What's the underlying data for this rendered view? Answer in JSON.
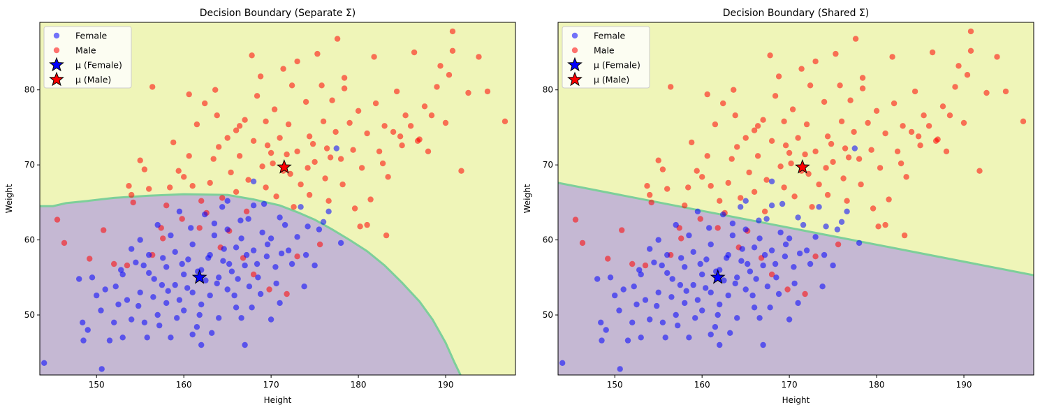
{
  "chart_data": [
    {
      "type": "scatter",
      "title": "Decision Boundary (Separate Σ)",
      "xlabel": "Height",
      "ylabel": "Weight",
      "xlim": [
        143.5,
        198
      ],
      "ylim": [
        42,
        89
      ],
      "xticks": [
        150,
        160,
        170,
        180,
        190
      ],
      "yticks": [
        50,
        60,
        70,
        80
      ],
      "grid": false,
      "legend_position": "top-left",
      "legend": [
        "Female",
        "Male",
        "μ (Female)",
        "μ (Male)"
      ],
      "regions": {
        "female_color": "#c5b8d3",
        "male_color": "#eff5b8",
        "boundary_color": "#7dcf9a",
        "boundary": [
          [
            143.5,
            64.5
          ],
          [
            145,
            64.5
          ],
          [
            146.5,
            64.9
          ],
          [
            149,
            65.2
          ],
          [
            152,
            65.6
          ],
          [
            156,
            65.9
          ],
          [
            160,
            66.1
          ],
          [
            165,
            66.0
          ],
          [
            168,
            65.4
          ],
          [
            171,
            64.6
          ],
          [
            173,
            63.7
          ],
          [
            175,
            62.7
          ],
          [
            177,
            61.4
          ],
          [
            179,
            60.0
          ],
          [
            181,
            58.5
          ],
          [
            183,
            56.6
          ],
          [
            185,
            54.3
          ],
          [
            187,
            51.8
          ],
          [
            188.5,
            49.4
          ],
          [
            190,
            46.3
          ],
          [
            191,
            43.7
          ],
          [
            191.7,
            42
          ]
        ],
        "boundary_kind": "curve"
      },
      "series": [
        {
          "name": "Female",
          "color": "#0000ff",
          "opacity": 0.55
        },
        {
          "name": "Male",
          "color": "#ff0000",
          "opacity": 0.55
        }
      ],
      "means": [
        {
          "name": "μ (Female)",
          "x": 161.8,
          "y": 55.0,
          "color": "#0000ff"
        },
        {
          "name": "μ (Male)",
          "x": 171.5,
          "y": 69.7,
          "color": "#ff0000"
        }
      ]
    },
    {
      "type": "scatter",
      "title": "Decision Boundary (Shared Σ)",
      "xlabel": "Height",
      "ylabel": "Weight",
      "xlim": [
        143.5,
        198
      ],
      "ylim": [
        42,
        89
      ],
      "xticks": [
        150,
        160,
        170,
        180,
        190
      ],
      "yticks": [
        50,
        60,
        70,
        80
      ],
      "grid": false,
      "legend_position": "top-left",
      "legend": [
        "Female",
        "Male",
        "μ (Female)",
        "μ (Male)"
      ],
      "regions": {
        "female_color": "#c5b8d3",
        "male_color": "#eff5b8",
        "boundary_color": "#7dcf9a",
        "boundary": [
          [
            143.5,
            67.6
          ],
          [
            198,
            55.3
          ]
        ],
        "boundary_kind": "line"
      },
      "series": [
        {
          "name": "Female",
          "color": "#0000ff",
          "opacity": 0.55
        },
        {
          "name": "Male",
          "color": "#ff0000",
          "opacity": 0.55
        }
      ],
      "means": [
        {
          "name": "μ (Female)",
          "x": 161.8,
          "y": 55.0,
          "color": "#0000ff"
        },
        {
          "name": "μ (Male)",
          "x": 171.5,
          "y": 69.7,
          "color": "#ff0000"
        }
      ]
    }
  ],
  "points": {
    "female": [
      [
        144,
        43.6
      ],
      [
        150.6,
        42.8
      ],
      [
        148,
        54.8
      ],
      [
        148.5,
        46.6
      ],
      [
        149,
        48
      ],
      [
        149.5,
        55
      ],
      [
        150.5,
        50.6
      ],
      [
        151,
        53.4
      ],
      [
        151.5,
        46.6
      ],
      [
        152,
        49
      ],
      [
        152.5,
        51.4
      ],
      [
        153,
        47
      ],
      [
        153.5,
        52
      ],
      [
        154,
        49.4
      ],
      [
        154.5,
        57
      ],
      [
        155,
        53
      ],
      [
        155.5,
        49
      ],
      [
        156,
        55.6
      ],
      [
        156.5,
        52.4
      ],
      [
        157,
        50
      ],
      [
        157.5,
        54
      ],
      [
        158,
        56.4
      ],
      [
        158,
        51.6
      ],
      [
        158.5,
        47
      ],
      [
        159,
        54
      ],
      [
        159,
        58.4
      ],
      [
        159.5,
        52
      ],
      [
        160,
        55.4
      ],
      [
        160,
        50.6
      ],
      [
        160.5,
        57.4
      ],
      [
        161,
        53
      ],
      [
        161,
        59.4
      ],
      [
        161.5,
        48.4
      ],
      [
        162,
        56
      ],
      [
        162,
        51.4
      ],
      [
        162.5,
        54.6
      ],
      [
        163,
        58
      ],
      [
        163,
        52.6
      ],
      [
        163.5,
        60.6
      ],
      [
        164,
        55
      ],
      [
        164,
        49.6
      ],
      [
        164.5,
        57.2
      ],
      [
        165,
        53.4
      ],
      [
        165,
        61.4
      ],
      [
        165.5,
        55.8
      ],
      [
        166,
        59
      ],
      [
        166,
        51
      ],
      [
        166.5,
        62.6
      ],
      [
        167,
        56.6
      ],
      [
        167.5,
        53.8
      ],
      [
        168,
        58.6
      ],
      [
        168,
        64.6
      ],
      [
        168.5,
        55
      ],
      [
        169,
        61
      ],
      [
        169.5,
        57.8
      ],
      [
        170,
        60.2
      ],
      [
        170.5,
        56.4
      ],
      [
        171,
        63
      ],
      [
        172,
        58.6
      ],
      [
        173,
        60.4
      ],
      [
        174,
        58
      ],
      [
        175,
        56.6
      ],
      [
        175.5,
        61.4
      ],
      [
        178,
        59.6
      ],
      [
        177.5,
        72.2
      ],
      [
        171,
        51.6
      ],
      [
        167,
        46
      ],
      [
        162,
        46
      ],
      [
        173.8,
        53.8
      ],
      [
        155,
        60
      ],
      [
        157,
        62
      ],
      [
        159.5,
        63.8
      ],
      [
        165,
        65.2
      ],
      [
        168,
        67.8
      ],
      [
        152.8,
        56
      ],
      [
        154,
        58.8
      ],
      [
        156,
        58
      ],
      [
        161,
        47.4
      ],
      [
        158.5,
        60.6
      ],
      [
        163.5,
        62.2
      ],
      [
        166.6,
        60.2
      ],
      [
        170.6,
        54.2
      ],
      [
        172.4,
        56.8
      ],
      [
        174.2,
        61.8
      ],
      [
        176.6,
        63.8
      ],
      [
        170,
        49.4
      ],
      [
        148.4,
        49
      ],
      [
        150,
        52.6
      ],
      [
        153,
        55.4
      ],
      [
        155.4,
        56.6
      ],
      [
        157.6,
        57.6
      ],
      [
        159.8,
        56.8
      ],
      [
        161.6,
        55.8
      ],
      [
        163.8,
        54.2
      ],
      [
        165.8,
        52.6
      ],
      [
        167.8,
        51
      ],
      [
        160.4,
        53.6
      ],
      [
        162.8,
        57.6
      ],
      [
        164.6,
        58.8
      ],
      [
        166.2,
        54.8
      ],
      [
        168.4,
        56.8
      ],
      [
        169.6,
        59.4
      ],
      [
        158.2,
        53.2
      ],
      [
        156.6,
        54.8
      ],
      [
        154.8,
        51.2
      ],
      [
        152.2,
        53.8
      ],
      [
        160.8,
        61.6
      ],
      [
        162.4,
        63.4
      ],
      [
        164.4,
        64.4
      ],
      [
        167.4,
        62.8
      ],
      [
        171.6,
        62
      ],
      [
        173.4,
        64.4
      ],
      [
        169.2,
        64.8
      ],
      [
        176,
        62.4
      ],
      [
        159.2,
        49.6
      ],
      [
        161.8,
        50
      ],
      [
        163.2,
        47.6
      ],
      [
        157.2,
        48.6
      ],
      [
        155.8,
        47
      ],
      [
        168.8,
        52.8
      ],
      [
        166.6,
        49.6
      ],
      [
        165.2,
        56.8
      ],
      [
        167.2,
        58
      ],
      [
        171.2,
        58.2
      ]
    ],
    "male": [
      [
        145.5,
        62.7
      ],
      [
        146.3,
        59.6
      ],
      [
        149.2,
        57.5
      ],
      [
        150.8,
        61.3
      ],
      [
        152,
        56.8
      ],
      [
        153.5,
        56.6
      ],
      [
        153.7,
        67.2
      ],
      [
        154,
        66
      ],
      [
        154.2,
        65
      ],
      [
        155,
        70.6
      ],
      [
        155.5,
        69.4
      ],
      [
        156,
        66.8
      ],
      [
        156.4,
        80.4
      ],
      [
        157.4,
        61.6
      ],
      [
        158,
        64.6
      ],
      [
        158.4,
        67
      ],
      [
        158.8,
        73
      ],
      [
        159.4,
        69.2
      ],
      [
        160,
        68.4
      ],
      [
        160.6,
        71.2
      ],
      [
        161,
        67.2
      ],
      [
        161.5,
        75.4
      ],
      [
        162,
        65.2
      ],
      [
        162.4,
        78.2
      ],
      [
        163,
        67.6
      ],
      [
        163.4,
        70.8
      ],
      [
        164,
        72.4
      ],
      [
        164.4,
        65.6
      ],
      [
        165,
        73.6
      ],
      [
        165.4,
        69
      ],
      [
        166,
        74.6
      ],
      [
        166.4,
        71.2
      ],
      [
        167,
        76
      ],
      [
        167.4,
        68
      ],
      [
        168,
        73.2
      ],
      [
        168.4,
        79.2
      ],
      [
        169,
        69.8
      ],
      [
        169.4,
        75.8
      ],
      [
        170,
        71.6
      ],
      [
        170.4,
        77.4
      ],
      [
        171,
        73.6
      ],
      [
        171.4,
        69.2
      ],
      [
        172,
        75.4
      ],
      [
        172.4,
        80.6
      ],
      [
        173,
        71.8
      ],
      [
        173.4,
        67.4
      ],
      [
        174,
        78.4
      ],
      [
        174.4,
        73.8
      ],
      [
        175,
        70.4
      ],
      [
        175.3,
        84.8
      ],
      [
        176,
        75.8
      ],
      [
        176.4,
        72.2
      ],
      [
        177,
        78.6
      ],
      [
        177.4,
        74.4
      ],
      [
        178,
        70.8
      ],
      [
        178.4,
        80.2
      ],
      [
        179,
        75.6
      ],
      [
        179.4,
        72
      ],
      [
        180,
        77.2
      ],
      [
        180.4,
        69.6
      ],
      [
        181,
        74.2
      ],
      [
        181.4,
        65.4
      ],
      [
        182,
        78.2
      ],
      [
        182.4,
        71.8
      ],
      [
        183,
        75.2
      ],
      [
        183.4,
        68.4
      ],
      [
        184,
        74.4
      ],
      [
        184.4,
        79.8
      ],
      [
        185,
        72.6
      ],
      [
        185.4,
        76.6
      ],
      [
        186,
        75.2
      ],
      [
        186.4,
        85
      ],
      [
        187,
        73.4
      ],
      [
        187.6,
        77.8
      ],
      [
        188,
        71.8
      ],
      [
        188.4,
        76.6
      ],
      [
        189,
        80.4
      ],
      [
        189.4,
        83.2
      ],
      [
        190,
        75.6
      ],
      [
        190.4,
        82
      ],
      [
        190.8,
        85.2
      ],
      [
        190.8,
        87.8
      ],
      [
        191.8,
        69.2
      ],
      [
        192.6,
        79.6
      ],
      [
        193.8,
        84.4
      ],
      [
        194.8,
        79.8
      ],
      [
        196.8,
        75.8
      ],
      [
        171.4,
        82.8
      ],
      [
        178.4,
        81.6
      ],
      [
        173,
        83.8
      ],
      [
        163.6,
        80
      ],
      [
        160.6,
        79.4
      ],
      [
        165.2,
        61.2
      ],
      [
        167.2,
        63.8
      ],
      [
        170.6,
        65.8
      ],
      [
        172.6,
        64.4
      ],
      [
        174.4,
        66
      ],
      [
        176.6,
        65.2
      ],
      [
        179.6,
        64.2
      ],
      [
        181,
        62
      ],
      [
        180.2,
        61.8
      ],
      [
        183.2,
        60.6
      ],
      [
        176.2,
        68.2
      ],
      [
        178.2,
        67.4
      ],
      [
        169.4,
        67
      ],
      [
        166,
        66.4
      ],
      [
        162.6,
        63.6
      ],
      [
        164.2,
        59
      ],
      [
        166.8,
        57.6
      ],
      [
        168,
        55.4
      ],
      [
        169.8,
        53.4
      ],
      [
        171.8,
        52.8
      ],
      [
        173,
        57.8
      ],
      [
        175.6,
        59.4
      ],
      [
        161.8,
        61.6
      ],
      [
        159.8,
        62.8
      ],
      [
        157.6,
        60.2
      ],
      [
        156.4,
        58
      ],
      [
        167.8,
        84.6
      ],
      [
        168.8,
        81.8
      ],
      [
        175.8,
        80.6
      ],
      [
        177.6,
        86.8
      ],
      [
        181.8,
        84.4
      ],
      [
        166.4,
        75.2
      ],
      [
        163.8,
        76.6
      ],
      [
        169.6,
        72.6
      ],
      [
        171.8,
        71.4
      ],
      [
        174.8,
        72.8
      ],
      [
        176.8,
        71
      ],
      [
        182.8,
        70.2
      ],
      [
        184.8,
        73.8
      ],
      [
        186.8,
        73.2
      ],
      [
        170.2,
        70.2
      ],
      [
        172.2,
        68.8
      ],
      [
        174.2,
        69.6
      ]
    ]
  }
}
